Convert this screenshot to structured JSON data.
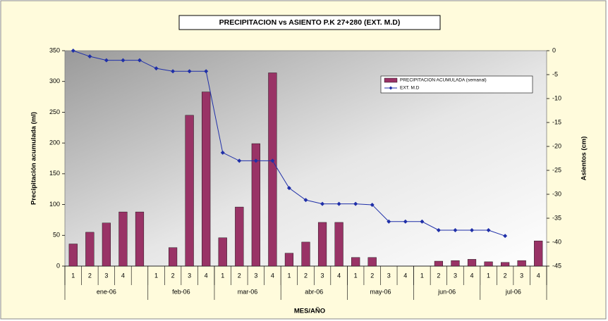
{
  "chart_data": {
    "type": "bar",
    "title": "PRECIPITACION vs ASIENTO P.K 27+280 (EXT. M.D)",
    "x_label": "MES/AÑO",
    "y_label": "Precipitación acumulada (ml)",
    "y2_label": "Asientos (cm)",
    "categories": [
      "1",
      "2",
      "3",
      "4",
      null,
      "1",
      "2",
      "3",
      "4",
      "1",
      "2",
      "3",
      "4",
      "1",
      "2",
      "3",
      "4",
      "1",
      "2",
      "3",
      "4",
      "1",
      "2",
      "3",
      "4",
      "1",
      "2",
      "3",
      "4"
    ],
    "groups": [
      {
        "label": "ene-06",
        "count": 5
      },
      {
        "label": "feb-06",
        "count": 4
      },
      {
        "label": "mar-06",
        "count": 4
      },
      {
        "label": "abr-06",
        "count": 4
      },
      {
        "label": "may-06",
        "count": 4
      },
      {
        "label": "jun-06",
        "count": 4
      },
      {
        "label": "jul-06",
        "count": 4
      }
    ],
    "series": [
      {
        "name": "PRECIPITACION ACUMULADA (semanal)",
        "type": "bar",
        "color": "#993366",
        "values": [
          36,
          55,
          70,
          88,
          88,
          0,
          30,
          245,
          283,
          46,
          96,
          199,
          314,
          21,
          39,
          71,
          71,
          14,
          14,
          0,
          0,
          0,
          8,
          9,
          11,
          7,
          6,
          9,
          41
        ]
      },
      {
        "name": "EXT. M.D",
        "type": "line",
        "axis": "y2",
        "color": "#1f2fa8",
        "values": [
          0,
          -1.2,
          -2,
          -2,
          -2,
          -3.7,
          -4.3,
          -4.3,
          -4.3,
          -21.3,
          -23,
          -23,
          -23,
          -28.7,
          -31.2,
          -32,
          -32,
          -32,
          -32.2,
          -35.7,
          -35.7,
          -35.7,
          -37.5,
          -37.5,
          -37.5,
          -37.5,
          -38.7,
          null,
          null
        ]
      }
    ],
    "ylim": [
      0,
      350
    ],
    "yticks": [
      0,
      50,
      100,
      150,
      200,
      250,
      300,
      350
    ],
    "y2lim": [
      -45,
      0
    ],
    "y2ticks": [
      0,
      -5,
      -10,
      -15,
      -20,
      -25,
      -30,
      -35,
      -40,
      -45
    ],
    "legend": "upper right"
  }
}
